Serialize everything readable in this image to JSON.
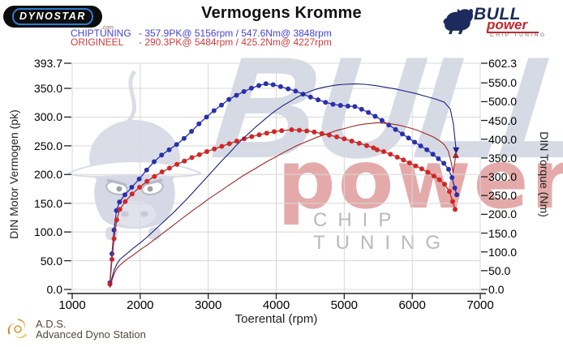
{
  "header": {
    "dynostar_logo": {
      "text": "DYNOSTAR",
      "suffix": ".com"
    },
    "title": "Vermogens Kromme",
    "legend": [
      {
        "label": "CHIPTUNING",
        "value": "- 357.9PK@ 5156rpm / 547.6Nm@ 3848rpm",
        "color": "#4343d3"
      },
      {
        "label": "ORIGINEEL",
        "value": "- 290.3PK@ 5484rpm / 425.2Nm@ 4227rpm",
        "color": "#cf3b3b"
      }
    ],
    "bullpower_logo": {
      "line1": "BULL",
      "line2": "power",
      "line3": "CHIP TUNING"
    }
  },
  "watermark": {
    "bull_word": "BULL",
    "power_word": "power",
    "chip_word": "CHIP TUNING"
  },
  "footer": {
    "ads_abbr": "A.D.S.",
    "ads_name": "Advanced Dyno Station"
  },
  "chart_data": {
    "type": "line",
    "title": "Vermogens Kromme",
    "xlabel": "Toerental (rpm)",
    "ylabel_left": "DIN Motor Vermogen (pk)",
    "ylabel_right": "DIN Torque (Nm)",
    "xlim": [
      1000,
      7000
    ],
    "ylim_left": [
      0,
      393.7
    ],
    "ylim_right": [
      0,
      602.3
    ],
    "grid": true,
    "legend_position": "top-left",
    "x_ticks": [
      "1000",
      "2000",
      "3000",
      "4000",
      "5000",
      "6000",
      "7000"
    ],
    "y_ticks_left": [
      "393.7",
      "350.0",
      "300.0",
      "250.0",
      "200.0",
      "150.0",
      "100.0",
      "50.0",
      "0.0"
    ],
    "y_ticks_right": [
      "602.3",
      "550.0",
      "500.0",
      "450.0",
      "400.0",
      "350.0",
      "300.0",
      "250.0",
      "200.0",
      "150.0",
      "100.0",
      "50.0",
      "0.0"
    ],
    "peaks": {
      "chiptuning": {
        "power_pk": 357.9,
        "power_rpm": 5156,
        "torque_nm": 547.6,
        "torque_rpm": 3848
      },
      "origineel": {
        "power_pk": 290.3,
        "power_rpm": 5484,
        "torque_nm": 425.2,
        "torque_rpm": 4227
      }
    },
    "series": [
      {
        "name": "chiptuning_torque_nm",
        "axis": "right",
        "color": "#2a2fae",
        "line_color": "#2a2fae",
        "markers": true,
        "points": [
          [
            1555,
            18
          ],
          [
            1585,
            95
          ],
          [
            1615,
            158
          ],
          [
            1650,
            210
          ],
          [
            1695,
            233
          ],
          [
            1775,
            252
          ],
          [
            1875,
            272
          ],
          [
            1985,
            294
          ],
          [
            2095,
            318
          ],
          [
            2205,
            340
          ],
          [
            2315,
            358
          ],
          [
            2425,
            372
          ],
          [
            2535,
            386
          ],
          [
            2645,
            402
          ],
          [
            2755,
            421
          ],
          [
            2865,
            441
          ],
          [
            2975,
            459
          ],
          [
            3085,
            476
          ],
          [
            3195,
            491
          ],
          [
            3305,
            506
          ],
          [
            3415,
            517
          ],
          [
            3525,
            527
          ],
          [
            3635,
            536
          ],
          [
            3745,
            543
          ],
          [
            3848,
            547.6
          ],
          [
            3955,
            545
          ],
          [
            4065,
            540
          ],
          [
            4175,
            534
          ],
          [
            4285,
            528
          ],
          [
            4395,
            520
          ],
          [
            4505,
            512
          ],
          [
            4615,
            505
          ],
          [
            4725,
            498
          ],
          [
            4835,
            493
          ],
          [
            4945,
            490
          ],
          [
            5055,
            488
          ],
          [
            5156,
            487
          ],
          [
            5255,
            480
          ],
          [
            5355,
            471
          ],
          [
            5455,
            461
          ],
          [
            5555,
            450
          ],
          [
            5655,
            438
          ],
          [
            5755,
            426
          ],
          [
            5855,
            414
          ],
          [
            5945,
            403
          ],
          [
            6035,
            392
          ],
          [
            6125,
            382
          ],
          [
            6215,
            372
          ],
          [
            6305,
            360
          ],
          [
            6385,
            348
          ],
          [
            6465,
            336
          ],
          [
            6535,
            320
          ],
          [
            6585,
            298
          ],
          [
            6625,
            270
          ],
          [
            6655,
            252
          ]
        ]
      },
      {
        "name": "origineel_torque_nm",
        "axis": "right",
        "color": "#d42525",
        "line_color": "#a83232",
        "markers": true,
        "points": [
          [
            1555,
            14
          ],
          [
            1585,
            80
          ],
          [
            1615,
            135
          ],
          [
            1655,
            185
          ],
          [
            1700,
            213
          ],
          [
            1780,
            234
          ],
          [
            1880,
            254
          ],
          [
            1990,
            272
          ],
          [
            2100,
            288
          ],
          [
            2210,
            301
          ],
          [
            2320,
            313
          ],
          [
            2430,
            323
          ],
          [
            2540,
            333
          ],
          [
            2650,
            342
          ],
          [
            2760,
            351
          ],
          [
            2870,
            359
          ],
          [
            2980,
            367
          ],
          [
            3090,
            374
          ],
          [
            3200,
            381
          ],
          [
            3310,
            388
          ],
          [
            3420,
            395
          ],
          [
            3530,
            401
          ],
          [
            3640,
            407
          ],
          [
            3750,
            412
          ],
          [
            3860,
            416
          ],
          [
            3970,
            420
          ],
          [
            4080,
            423
          ],
          [
            4227,
            425.2
          ],
          [
            4340,
            424
          ],
          [
            4450,
            422
          ],
          [
            4560,
            419
          ],
          [
            4670,
            415
          ],
          [
            4780,
            411
          ],
          [
            4890,
            406
          ],
          [
            5000,
            401
          ],
          [
            5110,
            395
          ],
          [
            5220,
            389
          ],
          [
            5330,
            383
          ],
          [
            5430,
            377
          ],
          [
            5484,
            372
          ],
          [
            5580,
            367
          ],
          [
            5680,
            360
          ],
          [
            5780,
            352
          ],
          [
            5870,
            345
          ],
          [
            5960,
            337
          ],
          [
            6050,
            329
          ],
          [
            6140,
            321
          ],
          [
            6230,
            312
          ],
          [
            6320,
            302
          ],
          [
            6400,
            292
          ],
          [
            6475,
            280
          ],
          [
            6545,
            261
          ],
          [
            6595,
            234
          ],
          [
            6630,
            213
          ]
        ]
      },
      {
        "name": "chiptuning_power_pk",
        "axis": "left",
        "color": "#1b2280",
        "line_color": "#1b2280",
        "markers": false,
        "end_arrow": "down",
        "points": [
          [
            1555,
            4
          ],
          [
            1585,
            20
          ],
          [
            1615,
            33
          ],
          [
            1655,
            44
          ],
          [
            1700,
            52
          ],
          [
            1800,
            62
          ],
          [
            1900,
            72
          ],
          [
            2000,
            81
          ],
          [
            2100,
            91
          ],
          [
            2200,
            102
          ],
          [
            2300,
            113
          ],
          [
            2400,
            124
          ],
          [
            2500,
            135
          ],
          [
            2600,
            147
          ],
          [
            2700,
            159
          ],
          [
            2800,
            172
          ],
          [
            2900,
            185
          ],
          [
            3000,
            198
          ],
          [
            3100,
            211
          ],
          [
            3200,
            224
          ],
          [
            3300,
            236
          ],
          [
            3400,
            249
          ],
          [
            3500,
            261
          ],
          [
            3600,
            272
          ],
          [
            3700,
            283
          ],
          [
            3800,
            293
          ],
          [
            3900,
            303
          ],
          [
            4000,
            312
          ],
          [
            4100,
            320
          ],
          [
            4200,
            327
          ],
          [
            4300,
            334
          ],
          [
            4400,
            340
          ],
          [
            4500,
            345
          ],
          [
            4600,
            349
          ],
          [
            4700,
            352
          ],
          [
            4800,
            354
          ],
          [
            4900,
            356
          ],
          [
            5000,
            357
          ],
          [
            5156,
            357.9
          ],
          [
            5300,
            357
          ],
          [
            5450,
            355
          ],
          [
            5600,
            352
          ],
          [
            5750,
            349
          ],
          [
            5900,
            345
          ],
          [
            6050,
            341
          ],
          [
            6200,
            336
          ],
          [
            6350,
            331
          ],
          [
            6470,
            326
          ],
          [
            6560,
            314
          ],
          [
            6605,
            288
          ],
          [
            6645,
            243
          ]
        ]
      },
      {
        "name": "origineel_power_pk",
        "axis": "left",
        "color": "#a02828",
        "line_color": "#a02828",
        "markers": false,
        "end_arrow": "up",
        "points": [
          [
            1555,
            3
          ],
          [
            1585,
            16
          ],
          [
            1615,
            27
          ],
          [
            1655,
            36
          ],
          [
            1700,
            42
          ],
          [
            1800,
            52
          ],
          [
            1900,
            60
          ],
          [
            2000,
            69
          ],
          [
            2100,
            77
          ],
          [
            2200,
            86
          ],
          [
            2300,
            95
          ],
          [
            2400,
            104
          ],
          [
            2500,
            113
          ],
          [
            2600,
            122
          ],
          [
            2700,
            131
          ],
          [
            2800,
            140
          ],
          [
            2900,
            148
          ],
          [
            3000,
            157
          ],
          [
            3100,
            165
          ],
          [
            3200,
            173
          ],
          [
            3300,
            181
          ],
          [
            3400,
            189
          ],
          [
            3500,
            197
          ],
          [
            3600,
            204
          ],
          [
            3700,
            211
          ],
          [
            3800,
            218
          ],
          [
            3900,
            225
          ],
          [
            4000,
            231
          ],
          [
            4100,
            238
          ],
          [
            4200,
            244
          ],
          [
            4300,
            250
          ],
          [
            4400,
            255
          ],
          [
            4500,
            260
          ],
          [
            4600,
            265
          ],
          [
            4700,
            269
          ],
          [
            4800,
            273
          ],
          [
            4900,
            277
          ],
          [
            5000,
            280
          ],
          [
            5100,
            283
          ],
          [
            5200,
            286
          ],
          [
            5300,
            288
          ],
          [
            5400,
            289
          ],
          [
            5484,
            290.3
          ],
          [
            5600,
            289
          ],
          [
            5700,
            288
          ],
          [
            5800,
            286
          ],
          [
            5900,
            283
          ],
          [
            6000,
            280
          ],
          [
            6100,
            276
          ],
          [
            6200,
            271
          ],
          [
            6300,
            266
          ],
          [
            6400,
            259
          ],
          [
            6470,
            252
          ],
          [
            6530,
            241
          ],
          [
            6575,
            220
          ],
          [
            6600,
            203
          ],
          [
            6640,
            233
          ]
        ]
      }
    ]
  }
}
